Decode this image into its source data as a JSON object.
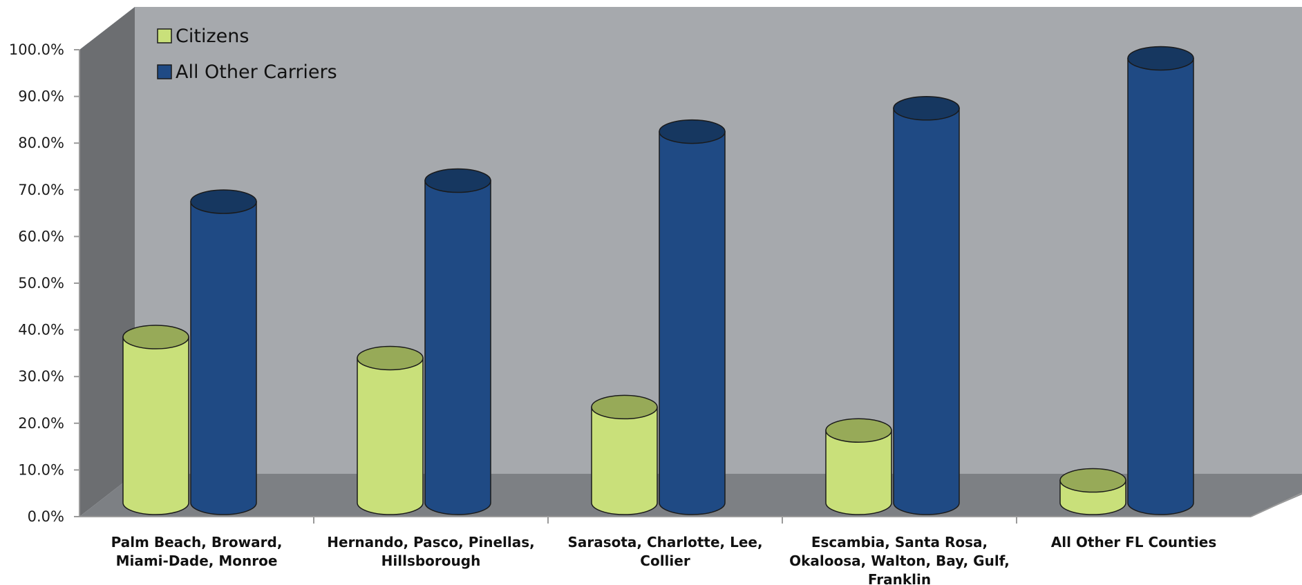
{
  "chart_data": {
    "type": "bar",
    "style": "3d-cylinder",
    "categories": [
      [
        "Palm Beach, Broward,",
        "Miami-Dade, Monroe"
      ],
      [
        "Hernando, Pasco, Pinellas,",
        "Hillsborough"
      ],
      [
        "Sarasota, Charlotte, Lee,",
        "Collier"
      ],
      [
        "Escambia, Santa Rosa,",
        "Okaloosa, Walton, Bay, Gulf,",
        "Franklin"
      ],
      [
        "All Other FL Counties"
      ]
    ],
    "series": [
      {
        "name": "Citizens",
        "values": [
          35.5,
          31.0,
          20.5,
          15.5,
          4.8
        ],
        "color": "#c9e07a",
        "top_color": "#97aa58"
      },
      {
        "name": "All Other Carriers",
        "values": [
          64.5,
          69.0,
          79.5,
          84.5,
          95.2
        ],
        "color": "#1f4a84",
        "top_color": "#163760"
      }
    ],
    "yticks": [
      "0.0%",
      "10.0%",
      "20.0%",
      "30.0%",
      "40.0%",
      "50.0%",
      "60.0%",
      "70.0%",
      "80.0%",
      "90.0%",
      "100.0%"
    ],
    "ylim": [
      0,
      100
    ],
    "grid": false,
    "legend": "top-left",
    "title": "",
    "xlabel": "",
    "ylabel": "",
    "colors": {
      "back_wall": "#a6a9ad",
      "side_wall": "#6c6e71",
      "floor": "#7d8084",
      "axis": "#9a9a9a"
    }
  }
}
